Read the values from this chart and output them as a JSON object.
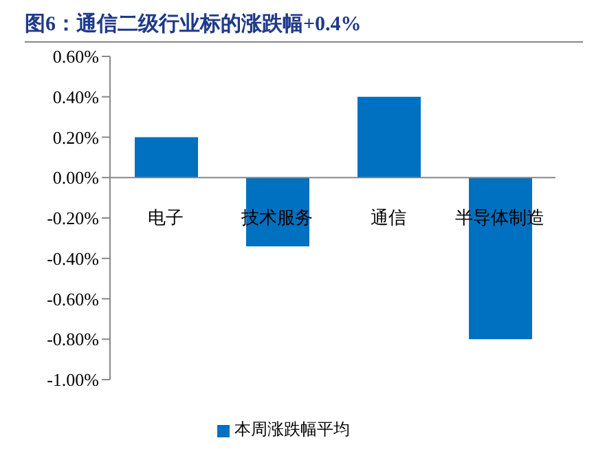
{
  "chart_data": {
    "type": "bar",
    "title": "图6：通信二级行业标的涨跌幅+0.4%",
    "categories": [
      "电子",
      "技术服务",
      "通信",
      "半导体制造"
    ],
    "series": [
      {
        "name": "本周涨跌幅平均",
        "color": "#0070c0",
        "values": [
          0.2,
          -0.34,
          0.4,
          -0.8
        ]
      }
    ],
    "ylim": [
      -1.0,
      0.6
    ],
    "yticks": [
      {
        "value": 0.6,
        "label": "0.60%"
      },
      {
        "value": 0.4,
        "label": "0.40%"
      },
      {
        "value": 0.2,
        "label": "0.20%"
      },
      {
        "value": 0,
        "label": "0.00%"
      },
      {
        "value": -0.2,
        "label": "-0.20%"
      },
      {
        "value": -0.4,
        "label": "-0.40%"
      },
      {
        "value": -0.6,
        "label": "-0.60%"
      },
      {
        "value": -0.8,
        "label": "-0.80%"
      },
      {
        "value": -1.0,
        "label": "-1.00%"
      }
    ],
    "grid": false,
    "legend": "bottom"
  }
}
